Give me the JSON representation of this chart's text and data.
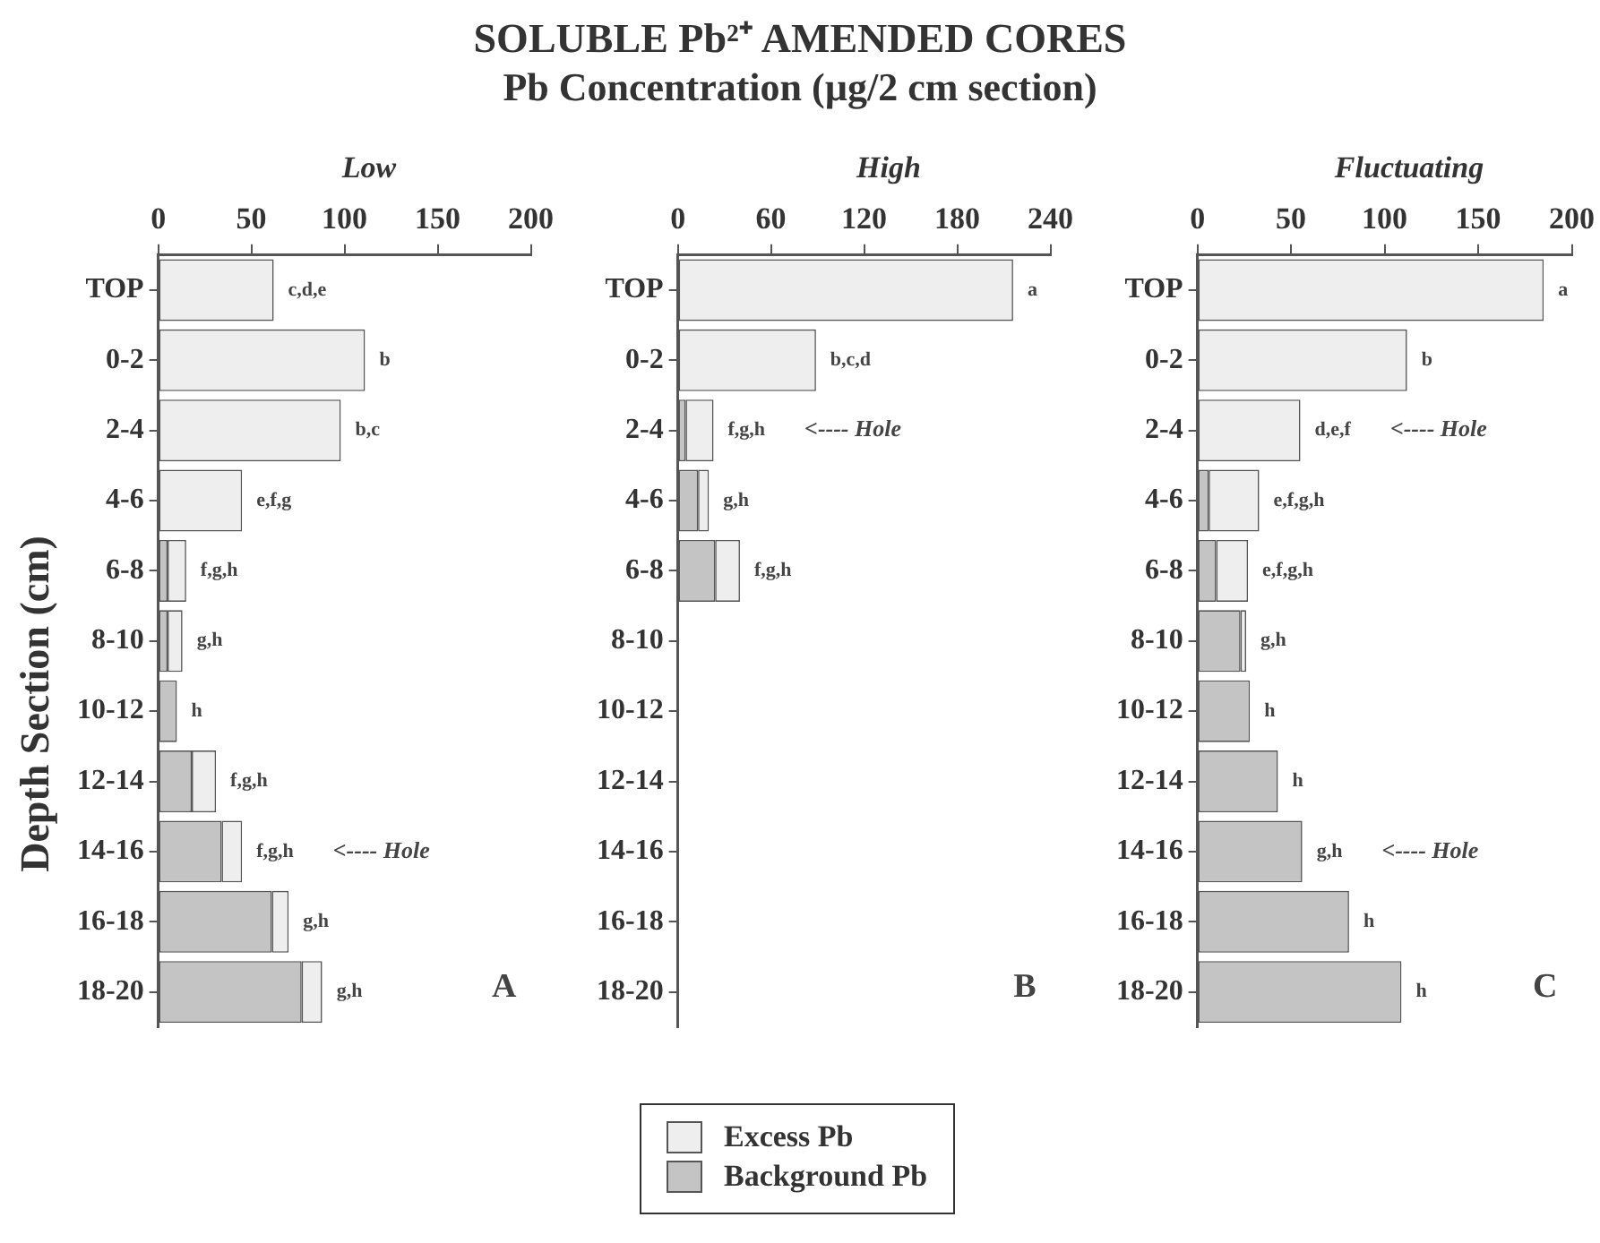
{
  "chart_data": [
    {
      "type": "bar",
      "orientation": "horizontal",
      "stacked": true,
      "subtitle": "Low",
      "ylabel": "Depth Section (cm)",
      "grid": false,
      "categories": [
        "TOP",
        "0-2",
        "2-4",
        "4-6",
        "6-8",
        "8-10",
        "10-12",
        "12-14",
        "14-16",
        "16-18",
        "18-20"
      ],
      "xlim": [
        0,
        200
      ],
      "xticks": [
        0,
        50,
        100,
        150,
        200
      ],
      "series": [
        {
          "color": "#c4c4c4",
          "values": [
            0,
            0,
            0,
            0,
            5,
            5,
            10,
            18,
            34,
            61,
            77
          ]
        },
        {
          "color": "#eeeeee",
          "values": [
            62,
            111,
            98,
            45,
            10,
            8,
            0,
            13,
            11,
            9,
            11
          ]
        }
      ],
      "annotations": [
        {
          "text": "c,d,e",
          "x": 62,
          "y": "TOP"
        },
        {
          "text": "b",
          "x": 111,
          "y": "0-2"
        },
        {
          "text": "b,c",
          "x": 98,
          "y": "2-4"
        },
        {
          "text": "e,f,g",
          "x": 45,
          "y": "4-6"
        },
        {
          "text": "f,g,h",
          "x": 15,
          "y": "6-8"
        },
        {
          "text": "g,h",
          "x": 13,
          "y": "8-10"
        },
        {
          "text": "h",
          "x": 10,
          "y": "10-12"
        },
        {
          "text": "f,g,h",
          "x": 31,
          "y": "12-14"
        },
        {
          "text": "f,g,h",
          "x": 45,
          "y": "14-16"
        },
        "<---- Hole",
        {
          "text": "g,h",
          "x": 70,
          "y": "16-18"
        },
        {
          "text": "g,h",
          "x": 88,
          "y": "18-20"
        },
        "A"
      ]
    },
    {
      "type": "bar",
      "orientation": "horizontal",
      "stacked": true,
      "title": "SOLUBLE Pb²⁺ AMENDED CORES",
      "xlabel": "Pb Concentration (µg/2 cm section)",
      "subtitle": "High",
      "legend": "bottom",
      "grid": false,
      "categories": [
        "TOP",
        "0-2",
        "2-4",
        "4-6",
        "6-8",
        "8-10",
        "10-12",
        "12-14",
        "14-16",
        "16-18",
        "18-20"
      ],
      "xlim": [
        0,
        240
      ],
      "xticks": [
        0,
        60,
        120,
        180,
        240
      ],
      "series": [
        {
          "name": "Background Pb",
          "color": "#c4c4c4",
          "values": [
            0,
            0,
            5,
            13,
            24,
            null,
            null,
            null,
            null,
            null,
            null
          ]
        },
        {
          "name": "Excess Pb",
          "color": "#eeeeee",
          "values": [
            216,
            89,
            18,
            7,
            16,
            null,
            null,
            null,
            null,
            null,
            null
          ]
        }
      ],
      "annotations": [
        {
          "text": "a",
          "x": 216,
          "y": "TOP"
        },
        {
          "text": "b,c,d",
          "x": 89,
          "y": "0-2"
        },
        {
          "text": "f,g,h",
          "x": 23,
          "y": "2-4"
        },
        "<---- Hole",
        {
          "text": "g,h",
          "x": 20,
          "y": "4-6"
        },
        {
          "text": "f,g,h",
          "x": 40,
          "y": "6-8"
        },
        "B"
      ]
    },
    {
      "type": "bar",
      "orientation": "horizontal",
      "stacked": true,
      "subtitle": "Fluctuating",
      "grid": false,
      "categories": [
        "TOP",
        "0-2",
        "2-4",
        "4-6",
        "6-8",
        "8-10",
        "10-12",
        "12-14",
        "14-16",
        "16-18",
        "18-20"
      ],
      "xlim": [
        0,
        200
      ],
      "xticks": [
        0,
        50,
        100,
        150,
        200
      ],
      "series": [
        {
          "color": "#c4c4c4",
          "values": [
            0,
            0,
            0,
            6,
            10,
            23,
            28,
            43,
            56,
            81,
            109
          ]
        },
        {
          "color": "#eeeeee",
          "values": [
            185,
            112,
            55,
            27,
            17,
            3,
            0,
            0,
            0,
            0,
            0
          ]
        }
      ],
      "annotations": [
        {
          "text": "a",
          "x": 185,
          "y": "TOP"
        },
        {
          "text": "b",
          "x": 112,
          "y": "0-2"
        },
        {
          "text": "d,e,f",
          "x": 55,
          "y": "2-4"
        },
        "<---- Hole",
        {
          "text": "e,f,g,h",
          "x": 33,
          "y": "4-6"
        },
        {
          "text": "e,f,g,h",
          "x": 27,
          "y": "6-8"
        },
        {
          "text": "g,h",
          "x": 26,
          "y": "8-10"
        },
        {
          "text": "h",
          "x": 28,
          "y": "10-12"
        },
        {
          "text": "h",
          "x": 43,
          "y": "12-14"
        },
        {
          "text": "g,h",
          "x": 56,
          "y": "14-16"
        },
        "<---- Hole",
        {
          "text": "h",
          "x": 81,
          "y": "16-18"
        },
        {
          "text": "h",
          "x": 109,
          "y": "18-20"
        },
        "C"
      ]
    }
  ]
}
